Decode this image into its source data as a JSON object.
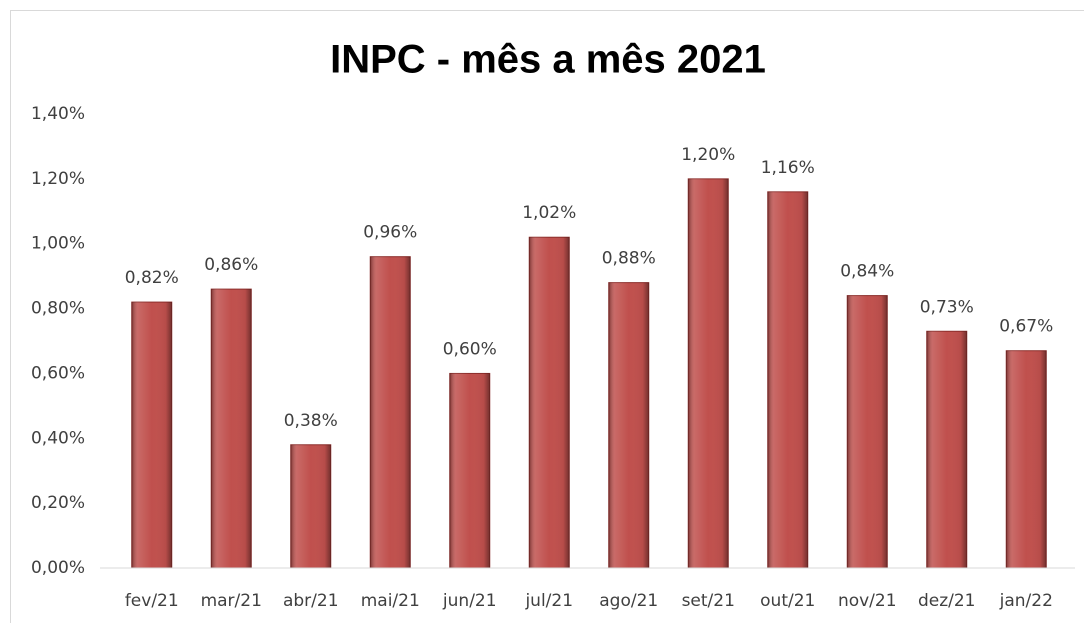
{
  "chart_data": {
    "type": "bar",
    "title": "INPC - mês a mês 2021",
    "categories": [
      "fev/21",
      "mar/21",
      "abr/21",
      "mai/21",
      "jun/21",
      "jul/21",
      "ago/21",
      "set/21",
      "out/21",
      "nov/21",
      "dez/21",
      "jan/22"
    ],
    "values": [
      0.82,
      0.86,
      0.38,
      0.96,
      0.6,
      1.02,
      0.88,
      1.2,
      1.16,
      0.84,
      0.73,
      0.67
    ],
    "value_labels": [
      "0,82%",
      "0,86%",
      "0,38%",
      "0,96%",
      "0,60%",
      "1,02%",
      "0,88%",
      "1,20%",
      "1,16%",
      "0,84%",
      "0,73%",
      "0,67%"
    ],
    "color": "#c0504d",
    "ylim": [
      0,
      1.4
    ],
    "yticks": [
      {
        "value": 0,
        "label": "0,00%"
      },
      {
        "value": 0.2,
        "label": "0,20%"
      },
      {
        "value": 0.4,
        "label": "0,40%"
      },
      {
        "value": 0.6,
        "label": "0,60%"
      },
      {
        "value": 0.8,
        "label": "0,80%"
      },
      {
        "value": 1.0,
        "label": "1,00%"
      },
      {
        "value": 1.2,
        "label": "1,20%"
      },
      {
        "value": 1.4,
        "label": "1,40%"
      }
    ],
    "grid": false
  }
}
